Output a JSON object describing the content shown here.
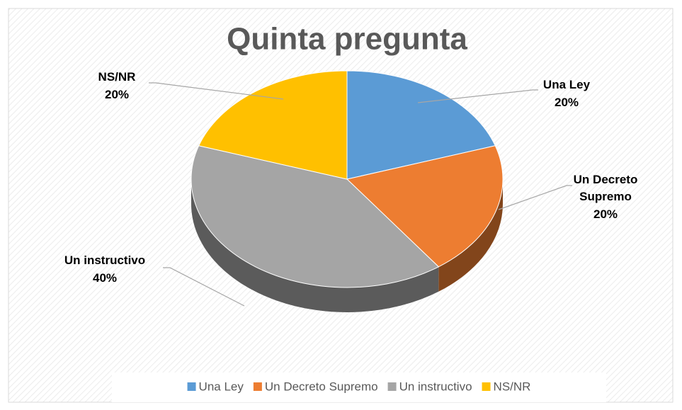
{
  "chart_data": {
    "type": "pie",
    "title": "Quinta pregunta",
    "categories": [
      "Una Ley",
      "Un Decreto Supremo",
      "Un instructivo",
      "NS/NR"
    ],
    "values": [
      20,
      20,
      40,
      20
    ],
    "value_labels": [
      "20%",
      "20%",
      "40%",
      "20%"
    ],
    "colors": [
      "#5b9bd5",
      "#ed7d31",
      "#a5a5a5",
      "#ffc000"
    ],
    "legend": "bottom"
  }
}
